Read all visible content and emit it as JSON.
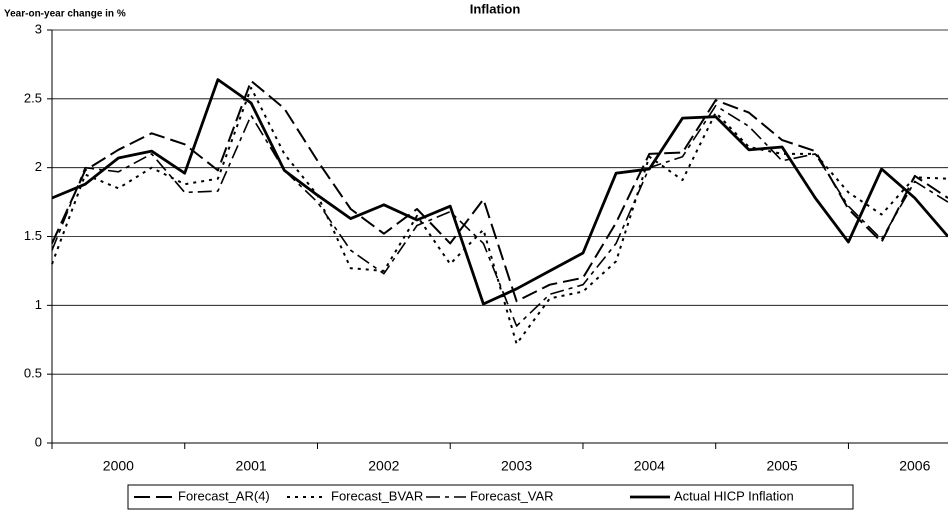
{
  "chart_data": {
    "type": "line",
    "title": "Inflation",
    "y_label": "Year-on-year change in %",
    "categories": [
      null,
      null,
      "2000",
      null,
      null,
      null,
      "2001",
      null,
      null,
      null,
      "2002",
      null,
      null,
      null,
      "2003",
      null,
      null,
      null,
      "2004",
      null,
      null,
      null,
      "2005",
      null,
      null,
      null,
      "2006",
      null
    ],
    "series": [
      {
        "name": "Forecast_AR(4)",
        "color": "#000000",
        "style": "long-dash",
        "values": [
          1.45,
          1.98,
          2.13,
          2.25,
          2.17,
          1.98,
          2.63,
          2.43,
          2.05,
          1.7,
          1.52,
          1.7,
          1.45,
          1.77,
          1.03,
          1.15,
          1.2,
          1.6,
          2.1,
          2.11,
          2.49,
          2.4,
          2.2,
          2.12,
          1.7,
          1.46,
          1.94,
          1.78
        ]
      },
      {
        "name": "Forecast_BVAR",
        "color": "#000000",
        "style": "dot",
        "values": [
          1.3,
          1.95,
          1.85,
          2.0,
          1.88,
          1.92,
          2.58,
          2.1,
          1.8,
          1.27,
          1.25,
          1.65,
          1.3,
          1.55,
          0.72,
          1.05,
          1.1,
          1.32,
          2.08,
          1.91,
          2.4,
          2.15,
          2.1,
          2.1,
          1.82,
          1.66,
          1.93,
          1.92
        ]
      },
      {
        "name": "Forecast_VAR",
        "color": "#000000",
        "style": "dash-dot",
        "values": [
          1.4,
          2.0,
          1.97,
          2.1,
          1.82,
          1.83,
          2.38,
          1.98,
          1.75,
          1.4,
          1.23,
          1.58,
          1.68,
          1.45,
          0.85,
          1.08,
          1.15,
          1.45,
          2.0,
          2.08,
          2.45,
          2.3,
          2.05,
          2.1,
          1.72,
          1.48,
          1.9,
          1.75
        ]
      },
      {
        "name": "Actual HICP Inflation",
        "color": "#000000",
        "style": "solid",
        "values": [
          1.78,
          1.88,
          2.07,
          2.12,
          1.96,
          2.64,
          2.47,
          1.98,
          1.8,
          1.63,
          1.73,
          1.62,
          1.72,
          1.01,
          1.12,
          1.25,
          1.38,
          1.96,
          1.99,
          2.36,
          2.37,
          2.13,
          2.15,
          1.78,
          1.46,
          1.99,
          1.78,
          1.5
        ]
      }
    ],
    "ylim": [
      0,
      3
    ],
    "yticks": [
      0,
      0.5,
      1,
      1.5,
      2,
      2.5,
      3
    ],
    "grid": true,
    "legend": "bottom"
  }
}
